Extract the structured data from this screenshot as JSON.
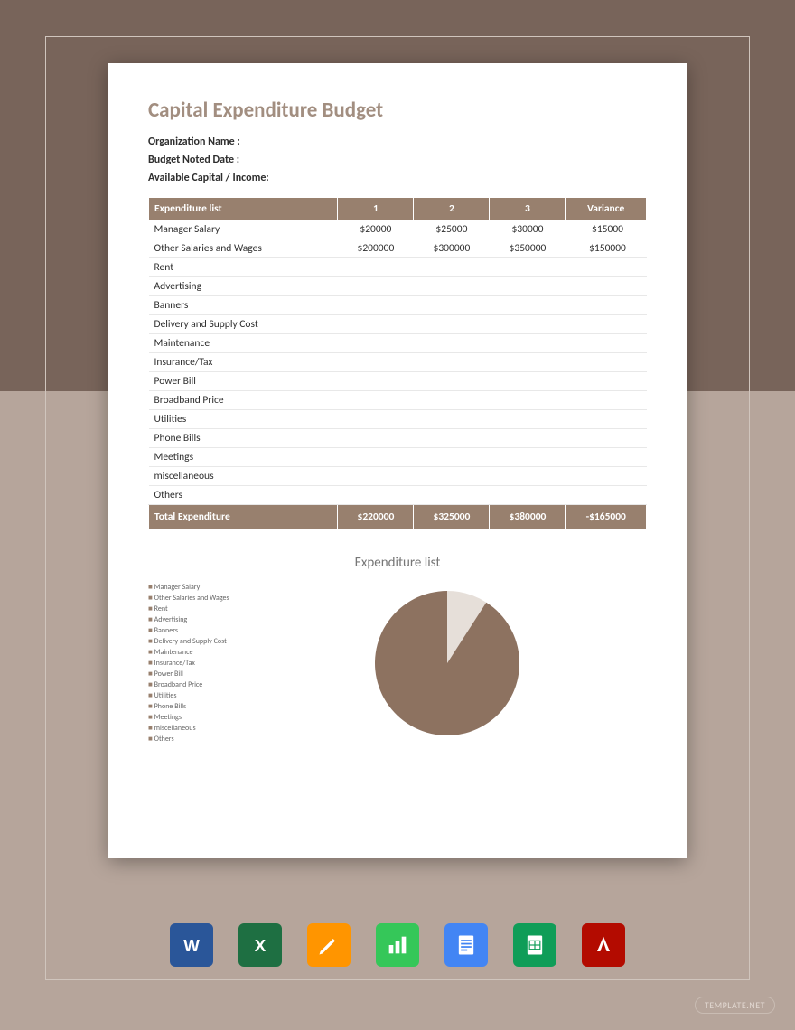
{
  "page": {
    "title": "Capital Expenditure Budget",
    "meta": {
      "org_label": "Organization Name :",
      "date_label": "Budget Noted Date :",
      "capital_label": "Available Capital / Income:"
    }
  },
  "table": {
    "headers": [
      "Expenditure list",
      "1",
      "2",
      "3",
      "Variance"
    ],
    "rows": [
      {
        "label": "Manager Salary",
        "c1": "$20000",
        "c2": "$25000",
        "c3": "$30000",
        "var": "-$15000"
      },
      {
        "label": "Other Salaries and Wages",
        "c1": "$200000",
        "c2": "$300000",
        "c3": "$350000",
        "var": "-$150000"
      },
      {
        "label": "Rent",
        "c1": "",
        "c2": "",
        "c3": "",
        "var": ""
      },
      {
        "label": "Advertising",
        "c1": "",
        "c2": "",
        "c3": "",
        "var": ""
      },
      {
        "label": "Banners",
        "c1": "",
        "c2": "",
        "c3": "",
        "var": ""
      },
      {
        "label": "Delivery and Supply Cost",
        "c1": "",
        "c2": "",
        "c3": "",
        "var": ""
      },
      {
        "label": "Maintenance",
        "c1": "",
        "c2": "",
        "c3": "",
        "var": ""
      },
      {
        "label": "Insurance/Tax",
        "c1": "",
        "c2": "",
        "c3": "",
        "var": ""
      },
      {
        "label": "Power Bill",
        "c1": "",
        "c2": "",
        "c3": "",
        "var": ""
      },
      {
        "label": "Broadband Price",
        "c1": "",
        "c2": "",
        "c3": "",
        "var": ""
      },
      {
        "label": "Utilities",
        "c1": "",
        "c2": "",
        "c3": "",
        "var": ""
      },
      {
        "label": "Phone Bills",
        "c1": "",
        "c2": "",
        "c3": "",
        "var": ""
      },
      {
        "label": "Meetings",
        "c1": "",
        "c2": "",
        "c3": "",
        "var": ""
      },
      {
        "label": "miscellaneous",
        "c1": "",
        "c2": "",
        "c3": "",
        "var": ""
      },
      {
        "label": "Others",
        "c1": "",
        "c2": "",
        "c3": "",
        "var": ""
      }
    ],
    "footer": {
      "label": "Total Expenditure",
      "c1": "$220000",
      "c2": "$325000",
      "c3": "$380000",
      "var": "-$165000"
    },
    "header_bg": "#98806e",
    "header_fg": "#ffffff"
  },
  "chart": {
    "type": "pie",
    "title": "Expenditure list",
    "legend_items": [
      "Manager Salary",
      "Other Salaries and Wages",
      "Rent",
      "Advertising",
      "Banners",
      "Delivery and Supply Cost",
      "Maintenance",
      "Insurance/Tax",
      "Power Bill",
      "Broadband Price",
      "Utilities",
      "Phone Bills",
      "Meetings",
      "miscellaneous",
      "Others"
    ],
    "slices": [
      {
        "label": "Manager Salary",
        "value": 20000,
        "color": "#e6dfd9"
      },
      {
        "label": "Other Salaries and Wages",
        "value": 200000,
        "color": "#8d7260"
      }
    ],
    "radius": 80,
    "title_fontsize": 15,
    "legend_fontsize": 8,
    "legend_marker_color": "#98806e"
  },
  "app_icons": [
    {
      "name": "word",
      "label": "W",
      "color": "#2a5699"
    },
    {
      "name": "excel",
      "label": "X",
      "color": "#1e6f42"
    },
    {
      "name": "pages",
      "label": "✎",
      "color": "#ff9500"
    },
    {
      "name": "numbers",
      "label": "▮",
      "color": "#35c759"
    },
    {
      "name": "gdoc",
      "label": "≡",
      "color": "#4285f4"
    },
    {
      "name": "gsheet",
      "label": "⊞",
      "color": "#0f9d58"
    },
    {
      "name": "pdf",
      "label": "A",
      "color": "#b30b00"
    }
  ],
  "watermark": "TEMPLATE.NET",
  "colors": {
    "bg_top": "#78645a",
    "bg_bottom": "#b6a59b",
    "frame_border": "#d0c5bd",
    "title_color": "#a28e80",
    "text_color": "#2e2e2e"
  }
}
